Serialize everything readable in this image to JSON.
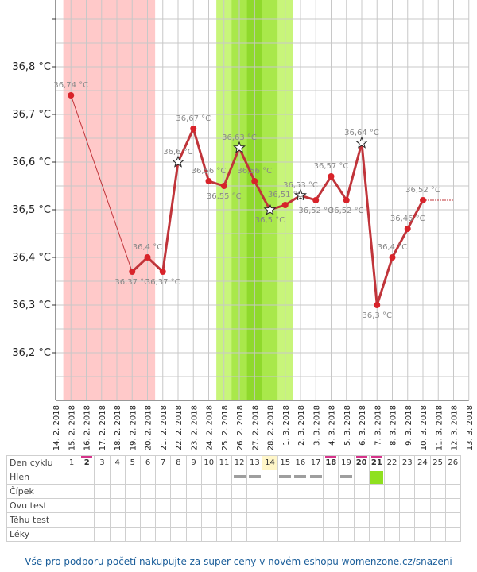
{
  "chart_data": {
    "type": "line",
    "ylabel": "",
    "xlabel": "",
    "ylim": [
      36.1,
      36.9
    ],
    "yticks": [
      "36,2 °C",
      "36,3 °C",
      "36,4 °C",
      "36,5 °C",
      "36,6 °C",
      "36,7 °C",
      "36,8 °C"
    ],
    "ytick_values": [
      36.2,
      36.3,
      36.4,
      36.5,
      36.6,
      36.7,
      36.8
    ],
    "x": [
      "14. 2. 2018",
      "15. 2. 2018",
      "16. 2. 2018",
      "17. 2. 2018",
      "18. 2. 2018",
      "19. 2. 2018",
      "20. 2. 2018",
      "21. 2. 2018",
      "22. 2. 2018",
      "23. 2. 2018",
      "24. 2. 2018",
      "25. 2. 2018",
      "26. 2. 2018",
      "27. 2. 2018",
      "28. 2. 2018",
      "1. 3. 2018",
      "2. 3. 2018",
      "3. 3. 2018",
      "4. 3. 2018",
      "5. 3. 2018",
      "6. 3. 2018",
      "7. 3. 2018",
      "8. 3. 2018",
      "9. 3. 2018",
      "10. 3. 2018",
      "11. 3. 2018",
      "12. 3. 2018",
      "13. 3. 2018"
    ],
    "series": [
      {
        "values": [
          null,
          36.74,
          null,
          null,
          null,
          36.37,
          36.4,
          36.37,
          36.6,
          36.67,
          36.56,
          36.55,
          36.63,
          36.56,
          36.5,
          36.51,
          36.53,
          36.52,
          36.57,
          36.52,
          36.64,
          36.3,
          36.4,
          36.46,
          36.52,
          null,
          null,
          null
        ],
        "labels": [
          null,
          "36,74 °C",
          null,
          null,
          null,
          "36,37 °C",
          "36,4 °C",
          "36,37 °C",
          "36,6 °C",
          "36,67 °C",
          "36,56 °C",
          "36,55 °C",
          "36,63 °C",
          "36,56 °C",
          "36,5 °C",
          "36,51 °C",
          "36,53 °C",
          "36,52 °C",
          "36,57 °C",
          "36,52 °C",
          "36,64 °C",
          "36,3 °C",
          "36,4 °C",
          "36,46 °C",
          "36,52 °C",
          null,
          null,
          null
        ],
        "star_days": [
          8,
          12,
          14,
          16,
          20
        ]
      }
    ],
    "regions": [
      {
        "kind": "menstruation",
        "color": "#ffc9c9",
        "from": 1,
        "to": 6
      },
      {
        "kind": "fertile",
        "color": "#c8f57a",
        "from": 11,
        "to": 15
      },
      {
        "kind": "fertile-peak",
        "color": "#a9e84b",
        "from": 12,
        "to": 14
      },
      {
        "kind": "ovulation",
        "color": "#8fd92c",
        "from": 13,
        "to": 13
      }
    ],
    "colors": {
      "line": "#c0343a",
      "point": "#d8232a",
      "grid": "#c8c8c8"
    },
    "grid": true
  },
  "cycle_table": {
    "rows": [
      "Den cyklu",
      "Hlen",
      "Čípek",
      "Ovu test",
      "Těhu test",
      "Léky"
    ],
    "days": [
      "1",
      "2",
      "3",
      "4",
      "5",
      "6",
      "7",
      "8",
      "9",
      "10",
      "11",
      "12",
      "13",
      "14",
      "15",
      "16",
      "17",
      "18",
      "19",
      "20",
      "21",
      "22",
      "23",
      "24",
      "25",
      "26"
    ],
    "marked_days": [
      2,
      18,
      20,
      21
    ],
    "bold_days": [
      2,
      18,
      20,
      21
    ],
    "highlight_day": 14,
    "mucus_gray_days": [
      12,
      13,
      15,
      16,
      17,
      19
    ],
    "mucus_green_days": [
      21
    ]
  },
  "footer": {
    "text": "Vše pro podporu početí nakupujte za super ceny v novém eshopu womenzone.cz/snazeni"
  }
}
